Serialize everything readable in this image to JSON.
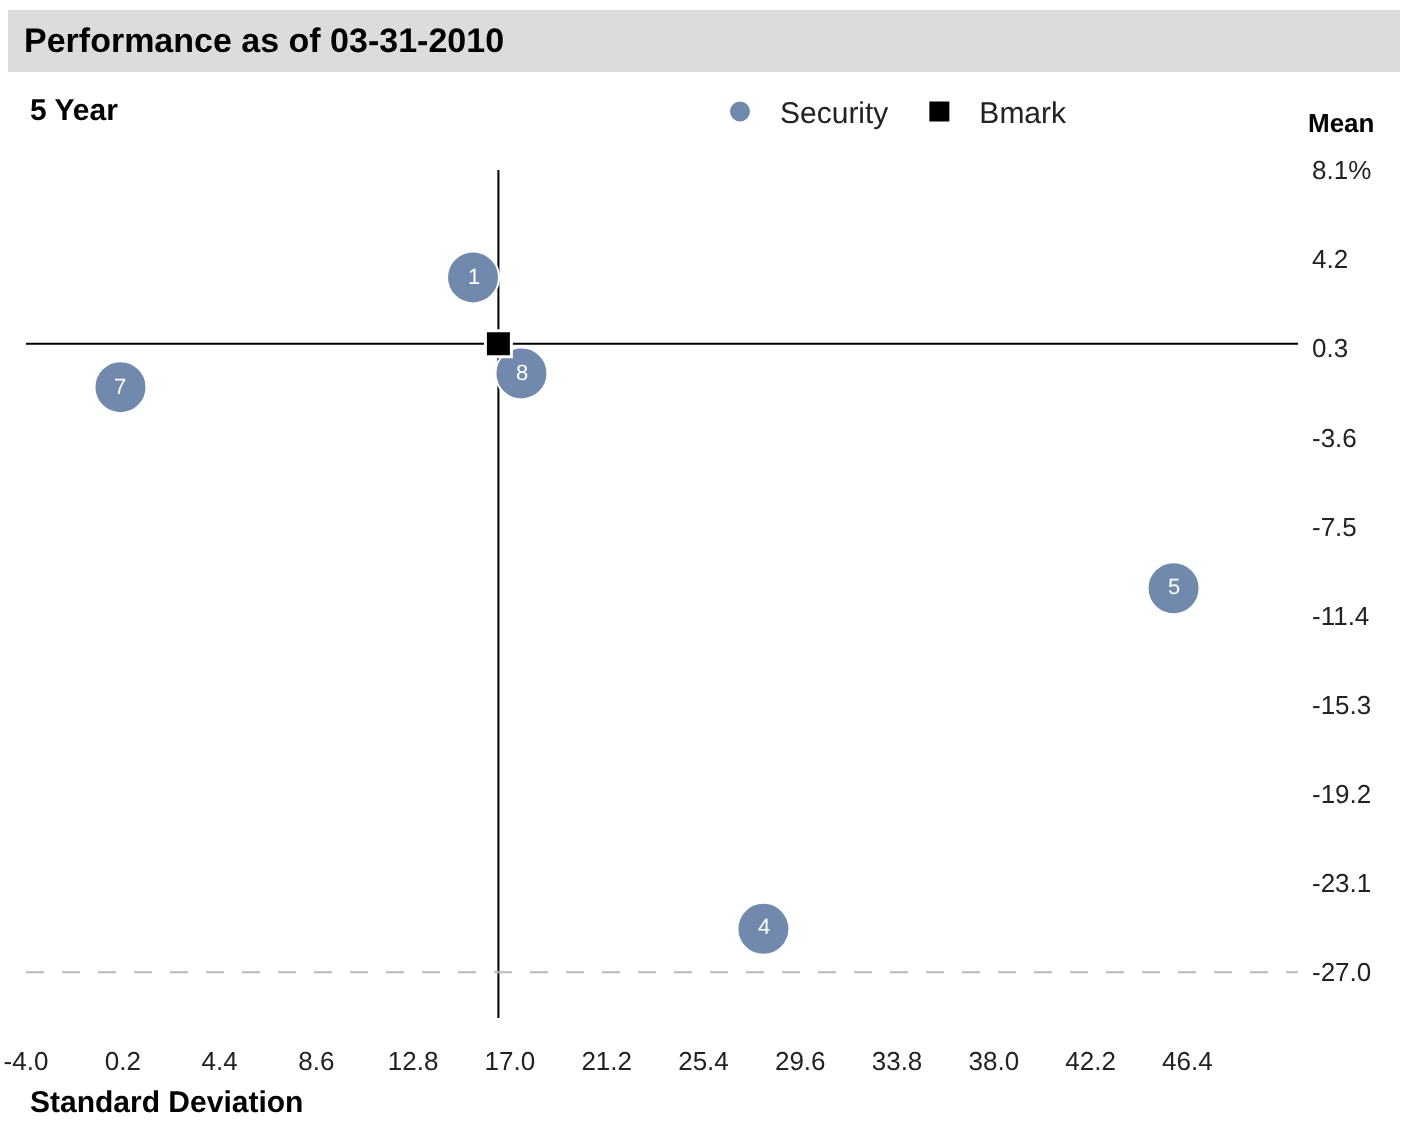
{
  "chart_data": {
    "type": "scatter",
    "title": "Performance as of 03-31-2010",
    "subtitle": "5 Year",
    "xlabel": "Standard Deviation",
    "ylabel": "Mean",
    "series": [
      {
        "name": "Security",
        "color": "#7189ac",
        "marker": "circle",
        "x": [
          15.4,
          17.5,
          0.1,
          45.8,
          28.0
        ],
        "values": [
          3.4,
          -0.8,
          -1.4,
          -10.2,
          -25.1
        ]
      },
      {
        "name": "Bmark",
        "color": "#000000",
        "marker": "square",
        "x": [
          16.5
        ],
        "values": [
          0.5
        ]
      }
    ],
    "annotations": [
      {
        "text": "1",
        "x": 15.4,
        "y": 3.4
      },
      {
        "text": "8",
        "x": 17.5,
        "y": -0.8
      },
      {
        "text": "7",
        "x": 0.1,
        "y": -1.4
      },
      {
        "text": "5",
        "x": 45.8,
        "y": -10.2
      },
      {
        "text": "4",
        "x": 28.0,
        "y": -25.1
      }
    ],
    "ref_lines": [
      {
        "axis": "x",
        "value": 16.5,
        "color": "#000000",
        "line_style": "solid"
      },
      {
        "axis": "y",
        "value": 0.5,
        "color": "#000000",
        "line_style": "solid"
      },
      {
        "axis": "y",
        "value": -27.0,
        "color": "#bbbbbb",
        "line_style": "dashed"
      }
    ],
    "xlim": [
      -4.0,
      51.2
    ],
    "xticks": [
      {
        "value": -4.0,
        "label": "-4.0"
      },
      0.2,
      4.4,
      8.6,
      12.8,
      {
        "value": 17.0,
        "label": "17.0"
      },
      21.2,
      25.4,
      29.6,
      33.8,
      {
        "value": 38.0,
        "label": "38.0"
      },
      42.2,
      46.4
    ],
    "ylim": [
      -29.0,
      8.1
    ],
    "yticks": [
      {
        "value": 8.1,
        "label": "8.1%"
      },
      4.2,
      0.3,
      -3.6,
      -7.5,
      -11.4,
      -15.3,
      -19.2,
      -23.1,
      {
        "value": -27.0,
        "label": "-27.0"
      }
    ],
    "grid": false,
    "legend": "top"
  }
}
